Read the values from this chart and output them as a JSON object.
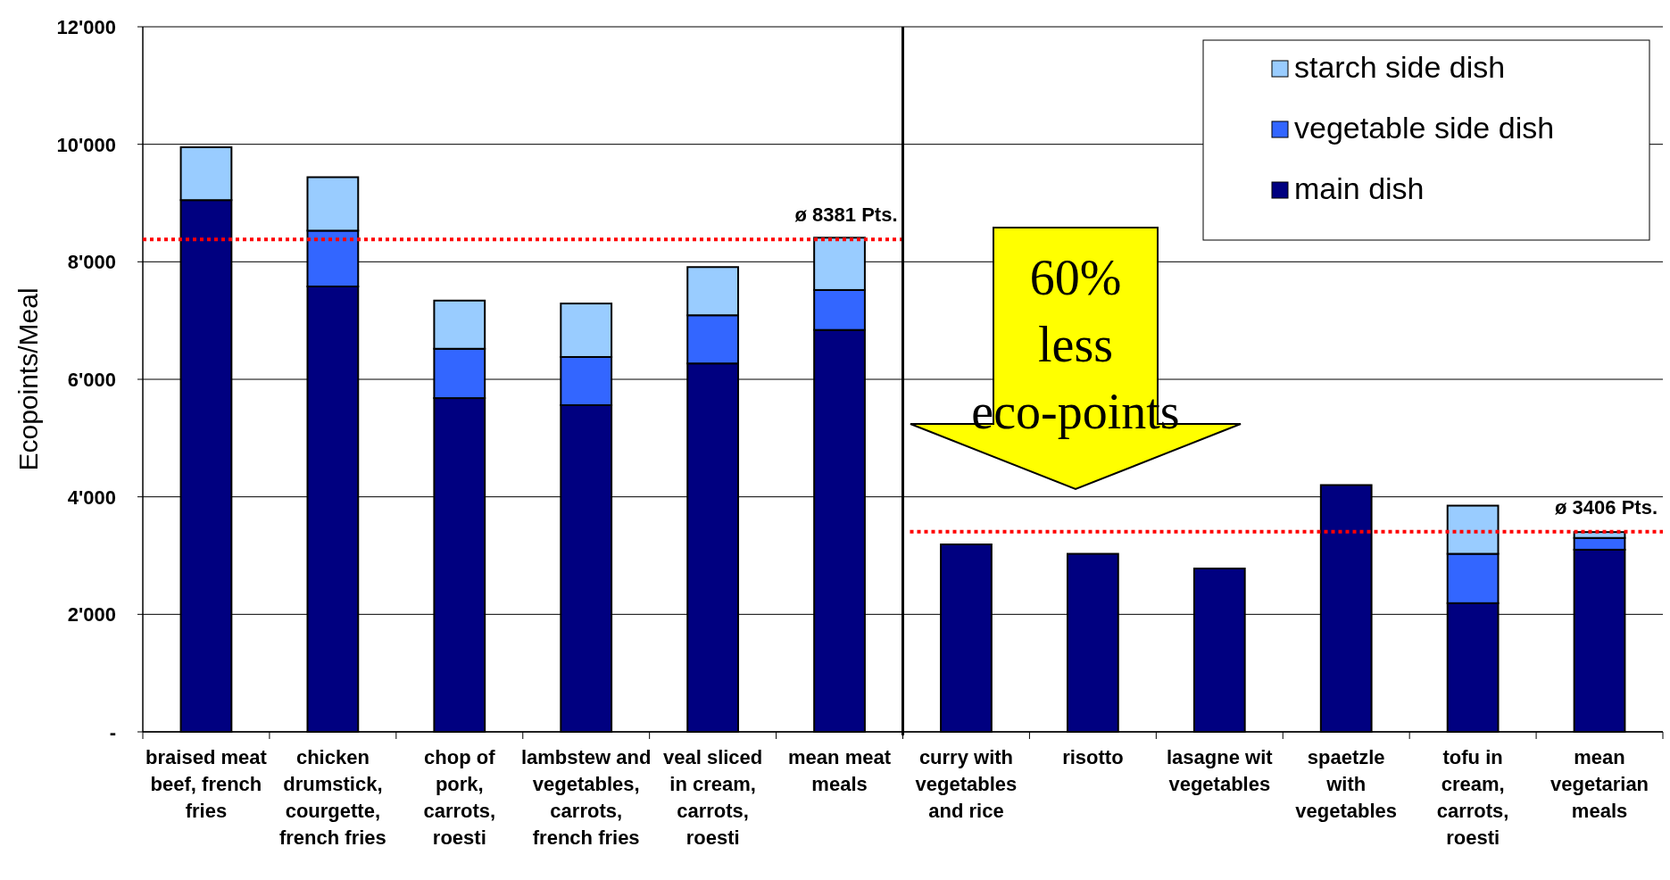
{
  "chart_data": {
    "type": "bar",
    "stacked": true,
    "ylabel": "Ecopoints/Meal",
    "categories": [
      "braised meat beef, french fries",
      "chicken drumstick, courgette, french fries",
      "chop of pork, carrots, roesti",
      "lambstew and vegetables, carrots, french fries",
      "veal sliced in cream, carrots, roesti",
      "mean meat meals",
      "curry with vegetables and rice",
      "risotto",
      "lasagne wit vegetables",
      "spaetzle with vegetables",
      "tofu in cream, carrots, roesti",
      "mean vegetarian meals"
    ],
    "series": [
      {
        "name": "main dish",
        "color": "#000080",
        "values": [
          9050,
          7580,
          5680,
          5560,
          6270,
          6840,
          3190,
          3030,
          2780,
          4200,
          2190,
          3100
        ]
      },
      {
        "name": "vegetable side dish",
        "color": "#3366ff",
        "values": [
          0,
          950,
          840,
          820,
          820,
          680,
          0,
          0,
          0,
          0,
          840,
          200
        ]
      },
      {
        "name": "starch side dish",
        "color": "#99ccff",
        "values": [
          900,
          910,
          820,
          910,
          820,
          890,
          0,
          0,
          0,
          0,
          820,
          100
        ]
      }
    ],
    "ylim": [
      0,
      12000
    ],
    "yticks": [
      {
        "value": 0,
        "label": "-"
      },
      {
        "value": 2000,
        "label": "2'000"
      },
      {
        "value": 4000,
        "label": "4'000"
      },
      {
        "value": 6000,
        "label": "6'000"
      },
      {
        "value": 8000,
        "label": "8'000"
      },
      {
        "value": 10000,
        "label": "10'000"
      },
      {
        "value": 12000,
        "label": "12'000"
      }
    ],
    "grid": "y",
    "legend": "top right",
    "ref_lines": [
      {
        "axis": "y",
        "value": 8381,
        "label": "ø 8381 Pts.",
        "color": "#ff0000",
        "line_style": "dotted"
      },
      {
        "axis": "y",
        "value": 3406,
        "label": "ø 3406 Pts.",
        "color": "#ff0000",
        "line_style": "dotted"
      },
      {
        "axis": "x",
        "value": "curry with vegetables and rice",
        "color": "#000000",
        "line_style": "solid"
      }
    ],
    "annotations": [
      "60% less eco-points"
    ]
  }
}
